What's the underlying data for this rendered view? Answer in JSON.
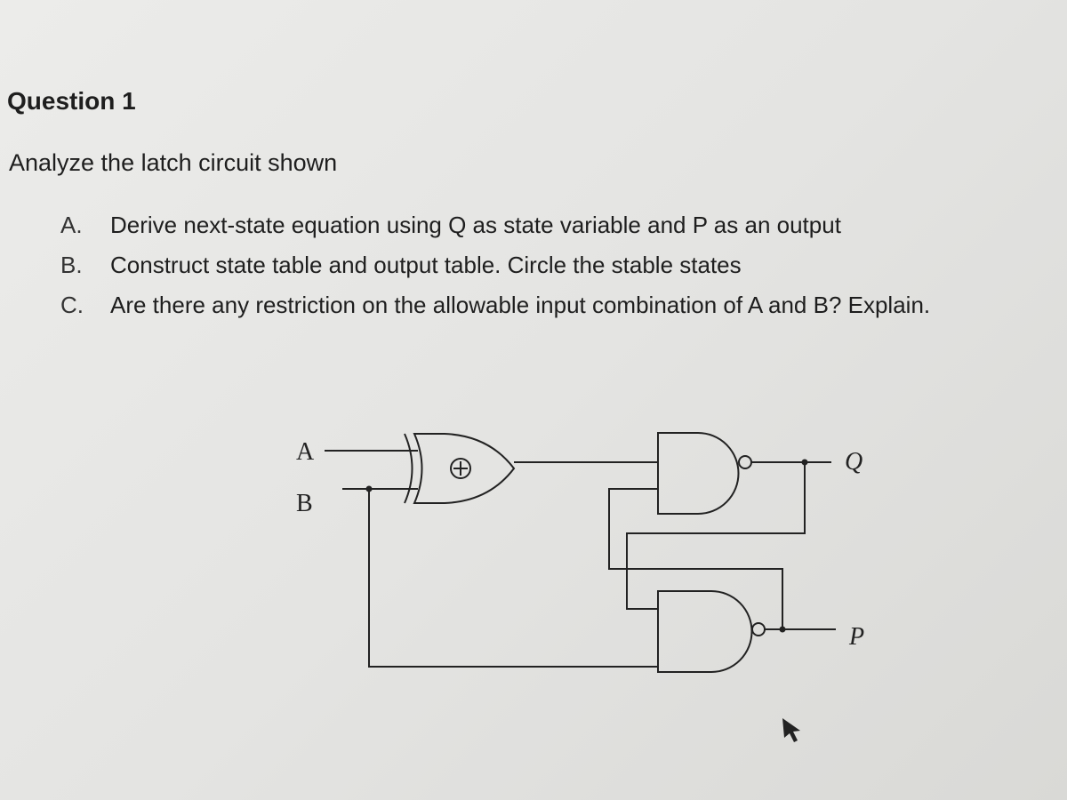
{
  "question": {
    "title": "Question 1",
    "prompt": "Analyze the latch circuit shown",
    "items": [
      {
        "marker": "A.",
        "text": "Derive next-state equation using Q as state variable and P as an output"
      },
      {
        "marker": "B.",
        "text": "Construct state table and output table. Circle the stable states"
      },
      {
        "marker": "C.",
        "text": "Are there any restriction on the allowable input combination of A and B? Explain."
      }
    ]
  },
  "circuit": {
    "inputs": [
      "A",
      "B"
    ],
    "outputs": [
      "Q",
      "P"
    ]
  }
}
